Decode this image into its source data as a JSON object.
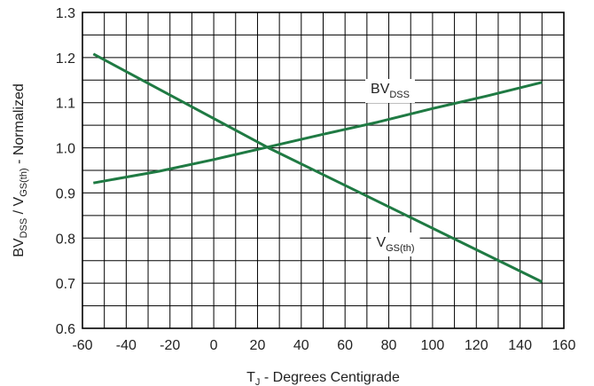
{
  "chart_data": {
    "type": "line",
    "title": "",
    "xlabel": {
      "main": "T",
      "sub": "J",
      "rest": " - Degrees Centigrade"
    },
    "ylabel": {
      "p1": "BV",
      "s1": "DSS",
      "p2": " / V",
      "s2": "GS(th)",
      "p3": " - Normalized"
    },
    "xlim": [
      -60,
      160
    ],
    "ylim": [
      0.6,
      1.3
    ],
    "x_ticks": [
      -60,
      -40,
      -20,
      0,
      20,
      40,
      60,
      80,
      100,
      120,
      140,
      160
    ],
    "y_ticks": [
      0.6,
      0.7,
      0.8,
      0.9,
      1.0,
      1.1,
      1.2,
      1.3
    ],
    "minor_x_step": 10,
    "minor_y_step": 0.05,
    "grid": true,
    "line_color": "#1f7a43",
    "series": [
      {
        "name": {
          "main": "BV",
          "sub": "DSS"
        },
        "x": [
          -55,
          -25,
          0,
          25,
          50,
          75,
          100,
          125,
          150
        ],
        "y": [
          0.922,
          0.948,
          0.974,
          1.002,
          1.03,
          1.057,
          1.087,
          1.115,
          1.145
        ]
      },
      {
        "name": {
          "main": "V",
          "sub": "GS(th)"
        },
        "x": [
          -55,
          25,
          150
        ],
        "y": [
          1.208,
          1.0,
          0.703
        ]
      }
    ]
  }
}
